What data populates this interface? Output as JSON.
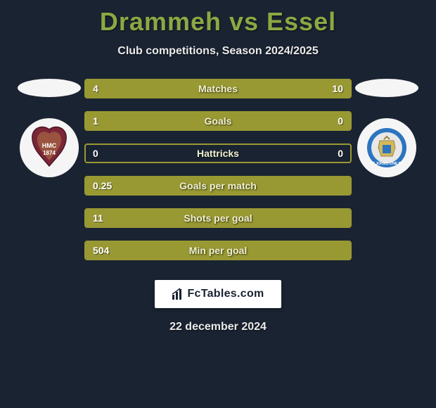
{
  "header": {
    "title": "Drammeh vs Essel",
    "subtitle": "Club competitions, Season 2024/2025"
  },
  "colors": {
    "background": "#1a2332",
    "bar_fill": "#999933",
    "bar_empty": "#1a2332",
    "bar_border": "#999933",
    "title_color": "#8ba843",
    "text_light": "#eaeaea",
    "ellipse": "#f5f5f5",
    "crest_bg": "#f5f5f5",
    "hearts_maroon": "#7a2638",
    "hearts_gold": "#d4a94a",
    "stj_blue": "#2c75bf",
    "stj_gold": "#d4b95a"
  },
  "stats": [
    {
      "label": "Matches",
      "left_val": "4",
      "right_val": "10",
      "left_pct": 28,
      "right_pct": 72
    },
    {
      "label": "Goals",
      "left_val": "1",
      "right_val": "0",
      "left_pct": 68,
      "right_pct": 32
    },
    {
      "label": "Hattricks",
      "left_val": "0",
      "right_val": "0",
      "left_pct": 0,
      "right_pct": 0
    },
    {
      "label": "Goals per match",
      "left_val": "0.25",
      "right_val": "",
      "left_pct": 100,
      "right_pct": 0
    },
    {
      "label": "Shots per goal",
      "left_val": "11",
      "right_val": "",
      "left_pct": 100,
      "right_pct": 0
    },
    {
      "label": "Min per goal",
      "left_val": "504",
      "right_val": "",
      "left_pct": 100,
      "right_pct": 0
    }
  ],
  "footer": {
    "brand": "FcTables.com",
    "date": "22 december 2024"
  }
}
